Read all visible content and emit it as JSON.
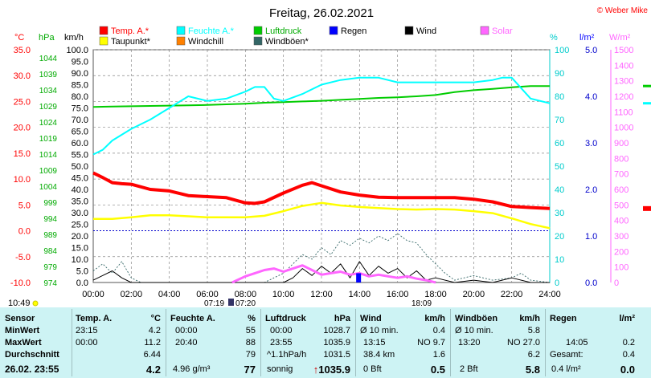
{
  "header": {
    "title": "Freitag, 26.02.2021",
    "copyright": "© Weber Mike",
    "current_time": "10:49",
    "sunrise_label": "07:19",
    "sunset_label": "18:09",
    "solar_noon_label": "07:20"
  },
  "colors": {
    "temp": "#ff0000",
    "humidity": "#00ffff",
    "pressure": "#00cc00",
    "dewpoint": "#ffff00",
    "windchill": "#ff8000",
    "rain": "#0000ff",
    "wind": "#000000",
    "solar": "#ff66ff",
    "gust": "#336666",
    "panel_bg": "#cdf3f4",
    "grid": "#888888"
  },
  "legend": [
    {
      "label": "Temp. A.*",
      "color": "#ff0000"
    },
    {
      "label": "Feuchte A.*",
      "color": "#00ffff"
    },
    {
      "label": "Luftdruck",
      "color": "#00cc00"
    },
    {
      "label": "Regen",
      "color": "#0000ff"
    },
    {
      "label": "Wind",
      "color": "#000000"
    },
    {
      "label": "Solar",
      "color": "#ff66ff"
    },
    {
      "label": "Taupunkt*",
      "color": "#ffff00"
    },
    {
      "label": "Windchill",
      "color": "#ff8000"
    },
    {
      "label": "Windböen*",
      "color": "#336666"
    }
  ],
  "chart_data": {
    "type": "line",
    "x_unit": "hour",
    "xlim": [
      0,
      24
    ],
    "x_ticks": [
      "00:00",
      "02:00",
      "04:00",
      "06:00",
      "08:00",
      "10:00",
      "12:00",
      "14:00",
      "16:00",
      "18:00",
      "20:00",
      "22:00",
      "24:00"
    ],
    "axes": {
      "temp": {
        "unit": "°C",
        "range": [
          -10,
          35
        ],
        "ticks": [
          "35.0",
          "30.0",
          "25.0",
          "20.0",
          "15.0",
          "10.0",
          "5.0",
          "0.0",
          "-5.0",
          "-10.0"
        ]
      },
      "pressure": {
        "unit": "hPa",
        "range": [
          974,
          1046.5
        ],
        "ticks": [
          "1044",
          "1039",
          "1034",
          "1029",
          "1024",
          "1019",
          "1014",
          "1009",
          "1004",
          "999",
          "994",
          "989",
          "984",
          "979",
          "974"
        ]
      },
      "wind": {
        "unit": "km/h",
        "range": [
          0,
          100
        ],
        "ticks": [
          "100.0",
          "95.0",
          "90.0",
          "85.0",
          "80.0",
          "75.0",
          "70.0",
          "65.0",
          "60.0",
          "55.0",
          "50.0",
          "45.0",
          "40.0",
          "35.0",
          "30.0",
          "25.0",
          "20.0",
          "15.0",
          "10.0",
          "5.0",
          "0.0"
        ]
      },
      "humidity": {
        "unit": "%",
        "range": [
          0,
          100
        ],
        "ticks": [
          "100",
          "90",
          "80",
          "70",
          "60",
          "50",
          "40",
          "30",
          "20",
          "10",
          "0"
        ]
      },
      "rain": {
        "unit": "l/m²",
        "range": [
          0,
          5
        ],
        "ticks": [
          "5.0",
          "4.0",
          "3.0",
          "2.0",
          "1.0",
          "0.0"
        ]
      },
      "solar": {
        "unit": "W/m²",
        "range": [
          0,
          1500
        ],
        "ticks": [
          "1500",
          "1400",
          "1300",
          "1200",
          "1100",
          "1000",
          "900",
          "800",
          "700",
          "600",
          "500",
          "400",
          "300",
          "200",
          "100",
          "0"
        ]
      }
    },
    "series": [
      {
        "name": "Temp. A.*",
        "axis": "temp",
        "x": [
          0,
          0.5,
          1,
          1.5,
          2,
          3,
          4,
          5,
          6,
          7,
          8,
          8.5,
          9,
          10,
          11,
          11.5,
          12,
          13,
          14,
          15,
          16,
          17,
          18,
          19,
          20,
          21,
          22,
          23,
          24
        ],
        "y": [
          11.2,
          10.3,
          9.3,
          9.1,
          9.0,
          8.0,
          7.7,
          6.8,
          6.6,
          6.4,
          5.4,
          5.3,
          5.6,
          7.3,
          8.8,
          9.3,
          8.7,
          7.5,
          6.9,
          6.5,
          6.4,
          6.4,
          6.4,
          6.4,
          6.1,
          5.6,
          4.7,
          4.5,
          4.3
        ]
      },
      {
        "name": "Taupunkt*",
        "axis": "temp",
        "x": [
          0,
          1,
          2,
          3,
          4,
          5,
          6,
          7,
          8,
          9,
          10,
          11,
          12,
          13,
          14,
          15,
          16,
          17,
          18,
          19,
          20,
          21,
          22,
          23,
          24
        ],
        "y": [
          2.3,
          2.3,
          2.6,
          3.0,
          3.0,
          2.8,
          2.6,
          2.6,
          2.6,
          2.9,
          3.8,
          4.8,
          5.4,
          4.9,
          4.6,
          4.4,
          4.2,
          4.1,
          4.2,
          4.1,
          3.8,
          3.4,
          2.4,
          1.3,
          0.5
        ]
      },
      {
        "name": "Feuchte A.*",
        "axis": "humidity",
        "x": [
          0,
          0.5,
          1,
          2,
          3,
          4,
          5,
          6,
          7,
          8,
          8.5,
          9,
          9.5,
          10,
          11,
          12,
          13,
          14,
          15,
          16,
          17,
          18,
          19,
          20,
          21,
          21.5,
          22,
          23,
          24
        ],
        "y": [
          55,
          57,
          61,
          66,
          70,
          75,
          80,
          78,
          79,
          82,
          84,
          84,
          79,
          78,
          81,
          85,
          87,
          88,
          88,
          86,
          86,
          86,
          86,
          86,
          87,
          88,
          88,
          79,
          77
        ]
      },
      {
        "name": "Luftdruck",
        "axis": "pressure",
        "x": [
          0,
          1,
          2,
          3,
          4,
          5,
          6,
          7,
          8,
          9,
          10,
          11,
          12,
          13,
          14,
          15,
          16,
          17,
          18,
          19,
          20,
          21,
          22,
          23,
          24
        ],
        "y": [
          1028.7,
          1028.8,
          1028.9,
          1029.0,
          1029.1,
          1029.2,
          1029.3,
          1029.5,
          1029.7,
          1030.0,
          1030.2,
          1030.4,
          1030.6,
          1030.9,
          1031.2,
          1031.5,
          1031.7,
          1032.0,
          1032.4,
          1033.3,
          1033.9,
          1034.3,
          1034.8,
          1035.2,
          1035.2
        ]
      },
      {
        "name": "Wind",
        "axis": "wind",
        "x": [
          0,
          0.5,
          1,
          1.5,
          2,
          2.5,
          3,
          4,
          5,
          6,
          7,
          8,
          9,
          10,
          10.5,
          11,
          11.5,
          12,
          12.5,
          13,
          13.5,
          14,
          14.5,
          15,
          15.5,
          16,
          16.5,
          17,
          17.5,
          18,
          19,
          20,
          21,
          22,
          23,
          24
        ],
        "y": [
          1,
          3,
          5,
          2,
          0,
          0,
          0,
          0,
          0,
          0,
          0,
          0,
          0,
          0,
          2,
          6,
          3,
          7,
          4,
          8,
          2,
          9,
          3,
          7,
          4,
          6,
          2,
          5,
          1,
          2,
          0,
          1,
          0,
          2,
          0,
          0
        ]
      },
      {
        "name": "Windböen*",
        "axis": "wind",
        "x": [
          0,
          0.5,
          1,
          1.5,
          2,
          2.5,
          3,
          4,
          5,
          6,
          7,
          8,
          9,
          10,
          10.5,
          11,
          11.5,
          12,
          12.5,
          13,
          13.5,
          14,
          14.5,
          15,
          15.5,
          16,
          16.5,
          17,
          17.5,
          18,
          18.5,
          19,
          20,
          21,
          22,
          22.5,
          23,
          24
        ],
        "y": [
          5,
          8,
          4,
          9,
          2,
          0,
          0,
          0,
          0,
          0,
          0,
          0,
          0,
          4,
          8,
          12,
          10,
          15,
          12,
          18,
          16,
          19,
          17,
          20,
          18,
          21,
          18,
          17,
          12,
          8,
          4,
          1,
          3,
          1,
          2,
          4,
          1,
          0
        ]
      },
      {
        "name": "Solar",
        "axis": "solar",
        "x": [
          7.3,
          8,
          8.5,
          9,
          9.5,
          10,
          10.5,
          11,
          11.5,
          12,
          12.5,
          13,
          13.5,
          14,
          14.5,
          15,
          15.5,
          16,
          16.5,
          17,
          17.5,
          18
        ],
        "y": [
          0,
          40,
          60,
          80,
          90,
          70,
          90,
          110,
          80,
          50,
          60,
          70,
          50,
          60,
          40,
          50,
          40,
          30,
          40,
          25,
          15,
          0
        ]
      }
    ]
  },
  "table": {
    "sensor": {
      "header": "Sensor",
      "rows": [
        "MinWert",
        "MaxWert",
        "Durchschnitt"
      ],
      "footer": "26.02. 23:55"
    },
    "temp": {
      "header": "Temp. A.",
      "unit": "°C",
      "min_time": "23:15",
      "min": "4.2",
      "max_time": "00:00",
      "max": "11.2",
      "avg": "6.44",
      "current": "4.2"
    },
    "humidity": {
      "header": "Feuchte A.",
      "unit": "%",
      "min_time": "00:00",
      "min": "55",
      "max_time": "20:40",
      "max": "88",
      "avg": "79",
      "abs": "4.96 g/m³",
      "current": "77"
    },
    "pressure": {
      "header": "Luftdruck",
      "unit": "hPa",
      "min_time": "00:00",
      "min": "1028.7",
      "max_time": "23:55",
      "max": "1035.9",
      "trend": "^1.1hPa/h",
      "avg": "1031.5",
      "forecast": "sonnig",
      "arrow": "↑",
      "current": "1035.9"
    },
    "wind": {
      "header": "Wind",
      "unit": "km/h",
      "r1_label": "Ø 10 min.",
      "r1_value": "0.4",
      "r2_label": "13:15",
      "r2_value": "NO 9.7",
      "r3_label": "38.4 km",
      "r3_value": "1.6",
      "r4_label": "0 Bft",
      "current": "0.5"
    },
    "gust": {
      "header": "Windböen",
      "unit": "km/h",
      "r1_label": "Ø 10 min.",
      "r1_value": "5.8",
      "r2_label": "13:20",
      "r2_value": "NO 27.0",
      "r3_value": "6.2",
      "r4_label": "2 Bft",
      "current": "5.8"
    },
    "rain": {
      "header": "Regen",
      "unit": "l/m²",
      "r2_label": "14:05",
      "r2_value": "0.2",
      "r3_label": "Gesamt:",
      "r3_value": "0.4",
      "r4_label": "0.4 l/m²",
      "current": "0.0"
    }
  }
}
